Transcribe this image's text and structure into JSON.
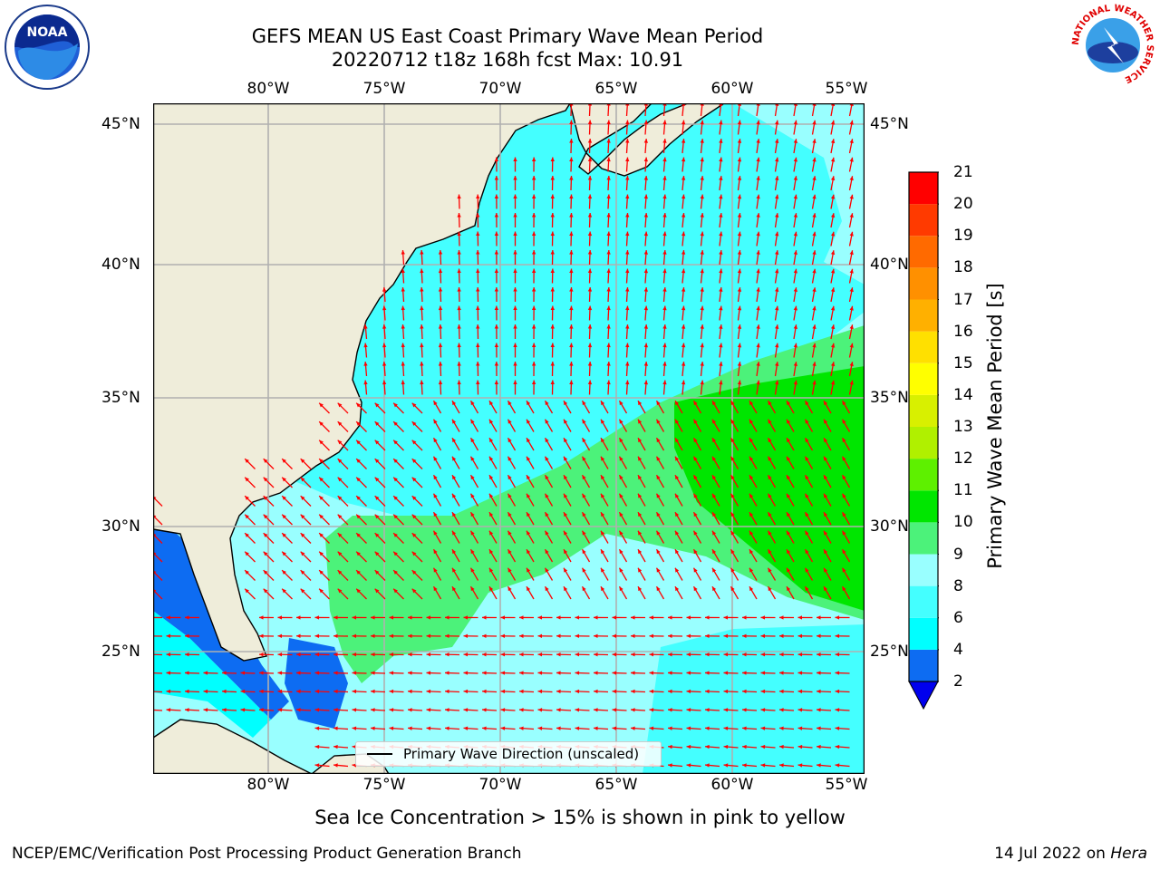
{
  "title": {
    "line1": "GEFS MEAN US East Coast Primary Wave Mean Period",
    "line2": "20220712 t18z 168h fcst   Max: 10.91"
  },
  "axes": {
    "lon_labels": [
      "80°W",
      "75°W",
      "70°W",
      "65°W",
      "60°W",
      "55°W"
    ],
    "lat_labels": [
      "45°N",
      "40°N",
      "35°N",
      "30°N",
      "25°N"
    ]
  },
  "colorbar": {
    "label": "Primary Wave Mean Period [s]",
    "levels": [
      2,
      4,
      6,
      8,
      9,
      10,
      11,
      12,
      13,
      14,
      15,
      16,
      17,
      18,
      19,
      20,
      21
    ],
    "colors": [
      "#0d6cf2",
      "#00ffff",
      "#44ffff",
      "#99ffff",
      "#4cf27a",
      "#00e600",
      "#5ef000",
      "#b0f000",
      "#d8f000",
      "#ffff00",
      "#ffe000",
      "#ffb000",
      "#ff9000",
      "#ff6a00",
      "#ff3a00",
      "#ff0000"
    ],
    "under_color": "#0000ee"
  },
  "legend": {
    "label": "Primary Wave Direction (unscaled)"
  },
  "note": "Sea Ice Concentration > 15% is shown in pink to yellow",
  "footer": {
    "left": "NCEP/EMC/Verification Post Processing Product Generation Branch",
    "right_date": "14 Jul 2022 on ",
    "right_machine": "Hera"
  },
  "logos": {
    "noaa": "NOAA",
    "nws": "NATIONAL WEATHER SERVICE"
  },
  "colors": {
    "land": "#efedda",
    "arrow": "#ff0000",
    "grid": "#b0b0b0"
  }
}
